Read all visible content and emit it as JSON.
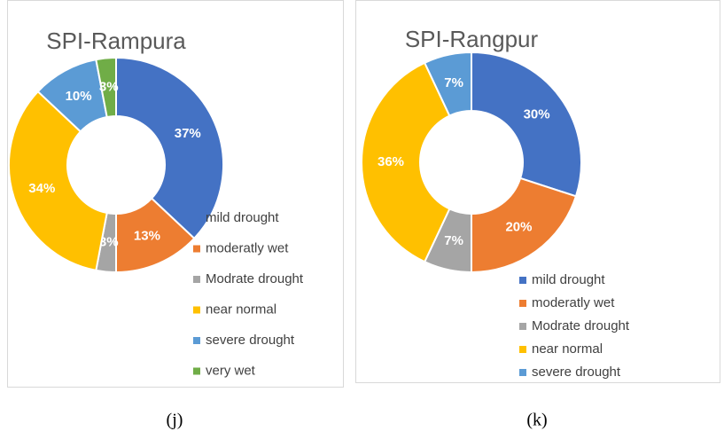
{
  "chart_data": [
    {
      "type": "donut",
      "title": "SPI-Rampura",
      "caption": "(j)",
      "categories": [
        "mild drought",
        "moderatly wet",
        "Modrate drought",
        "near normal",
        "severe drought",
        "very wet"
      ],
      "values": [
        37,
        13,
        3,
        34,
        10,
        3
      ],
      "value_labels": [
        "37%",
        "13%",
        "3%",
        "34%",
        "10%",
        "3%"
      ],
      "colors": [
        "#4472c4",
        "#ed7d31",
        "#a5a5a5",
        "#ffc000",
        "#5b9bd5",
        "#70ad47"
      ],
      "legend": "right"
    },
    {
      "type": "donut",
      "title": "SPI-Rangpur",
      "caption": "(k)",
      "categories": [
        "mild drought",
        "moderatly wet",
        "Modrate drought",
        "near normal",
        "severe drought"
      ],
      "values": [
        30,
        20,
        7,
        36,
        7
      ],
      "value_labels": [
        "30%",
        "20%",
        "7%",
        "36%",
        "7%"
      ],
      "colors": [
        "#4472c4",
        "#ed7d31",
        "#a5a5a5",
        "#ffc000",
        "#5b9bd5"
      ],
      "legend": "right"
    }
  ]
}
